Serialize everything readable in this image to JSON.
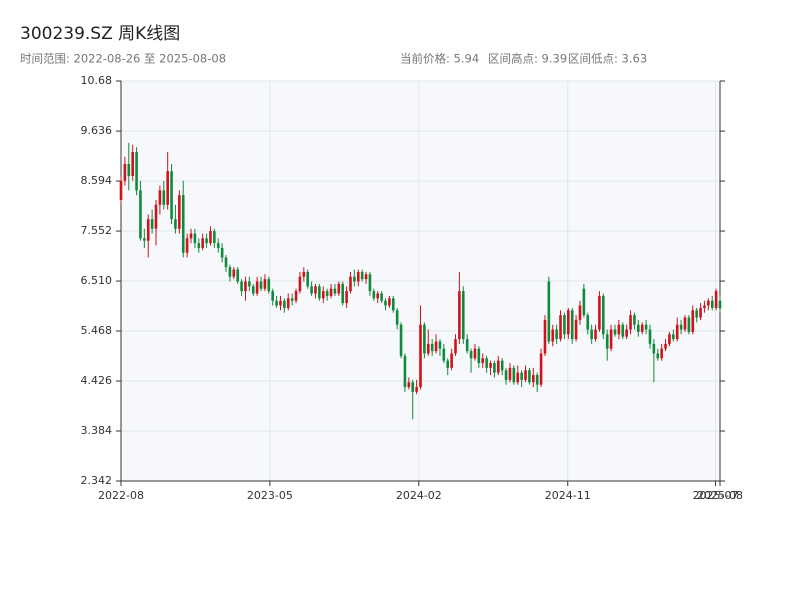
{
  "chart_data": {
    "type": "candlestick",
    "title": "300239.SZ 周K线图",
    "subtitle": "时间范围: 2022-08-26 至 2025-08-08",
    "stats": [
      "当前价格: 5.94",
      "区间高点: 9.39",
      "区间低点: 3.63"
    ],
    "up_color": "#d0121b",
    "down_color": "#0f8a3c",
    "x": [
      "2022-08-26",
      "2022-09-02",
      "2022-09-09",
      "2022-09-16",
      "2022-09-23",
      "2022-09-30",
      "2022-10-07",
      "2022-10-14",
      "2022-10-21",
      "2022-10-28",
      "2022-11-04",
      "2022-11-11",
      "2022-11-18",
      "2022-11-25",
      "2022-12-02",
      "2022-12-09",
      "2022-12-16",
      "2022-12-23",
      "2022-12-30",
      "2023-01-06",
      "2023-01-13",
      "2023-01-20",
      "2023-01-27",
      "2023-02-03",
      "2023-02-10",
      "2023-02-17",
      "2023-02-24",
      "2023-03-03",
      "2023-03-10",
      "2023-03-17",
      "2023-03-24",
      "2023-03-31",
      "2023-04-07",
      "2023-04-14",
      "2023-04-21",
      "2023-04-28",
      "2023-05-05",
      "2023-05-12",
      "2023-05-19",
      "2023-05-26",
      "2023-06-02",
      "2023-06-09",
      "2023-06-16",
      "2023-06-23",
      "2023-06-30",
      "2023-07-07",
      "2023-07-14",
      "2023-07-21",
      "2023-07-28",
      "2023-08-04",
      "2023-08-11",
      "2023-08-18",
      "2023-08-25",
      "2023-09-01",
      "2023-09-08",
      "2023-09-15",
      "2023-09-22",
      "2023-09-29",
      "2023-10-06",
      "2023-10-13",
      "2023-10-20",
      "2023-10-27",
      "2023-11-03",
      "2023-11-10",
      "2023-11-17",
      "2023-11-24",
      "2023-12-01",
      "2023-12-08",
      "2023-12-15",
      "2023-12-22",
      "2023-12-29",
      "2024-01-05",
      "2024-01-12",
      "2024-01-19",
      "2024-01-26",
      "2024-02-02",
      "2024-02-09",
      "2024-02-16",
      "2024-02-23",
      "2024-03-01",
      "2024-03-08",
      "2024-03-15",
      "2024-03-22",
      "2024-03-29",
      "2024-04-05",
      "2024-04-12",
      "2024-04-19",
      "2024-04-26",
      "2024-05-03",
      "2024-05-10",
      "2024-05-17",
      "2024-05-24",
      "2024-05-31",
      "2024-06-07",
      "2024-06-14",
      "2024-06-21",
      "2024-06-28",
      "2024-07-05",
      "2024-07-12",
      "2024-07-19",
      "2024-07-26",
      "2024-08-02",
      "2024-08-09",
      "2024-08-16",
      "2024-08-23",
      "2024-08-30",
      "2024-09-06",
      "2024-09-13",
      "2024-09-20",
      "2024-09-27",
      "2024-10-04",
      "2024-10-11",
      "2024-10-18",
      "2024-10-25",
      "2024-11-01",
      "2024-11-08",
      "2024-11-15",
      "2024-11-22",
      "2024-11-29",
      "2024-12-06",
      "2024-12-13",
      "2024-12-20",
      "2024-12-27",
      "2025-01-03",
      "2025-01-10",
      "2025-01-17",
      "2025-01-24",
      "2025-01-31",
      "2025-02-07",
      "2025-02-14",
      "2025-02-21",
      "2025-02-28",
      "2025-03-07",
      "2025-03-14",
      "2025-03-21",
      "2025-03-28",
      "2025-04-04",
      "2025-04-11",
      "2025-04-18",
      "2025-04-25",
      "2025-05-02",
      "2025-05-09",
      "2025-05-16",
      "2025-05-23",
      "2025-05-30",
      "2025-06-06",
      "2025-06-13",
      "2025-06-20",
      "2025-06-27",
      "2025-07-04",
      "2025-07-11",
      "2025-07-18",
      "2025-07-25",
      "2025-08-01",
      "2025-08-08"
    ],
    "open": [
      8.2,
      8.6,
      8.95,
      8.7,
      9.2,
      8.4,
      7.4,
      7.35,
      7.8,
      7.6,
      8.1,
      8.4,
      8.1,
      8.8,
      7.8,
      7.6,
      8.3,
      7.1,
      7.4,
      7.5,
      7.3,
      7.2,
      7.4,
      7.3,
      7.55,
      7.3,
      7.2,
      7.0,
      6.8,
      6.6,
      6.75,
      6.5,
      6.3,
      6.5,
      6.4,
      6.25,
      6.5,
      6.35,
      6.55,
      6.3,
      6.1,
      6.0,
      6.1,
      5.95,
      6.15,
      6.1,
      6.3,
      6.6,
      6.7,
      6.4,
      6.25,
      6.4,
      6.15,
      6.3,
      6.2,
      6.35,
      6.25,
      6.45,
      6.05,
      6.3,
      6.6,
      6.5,
      6.7,
      6.55,
      6.65,
      6.3,
      6.15,
      6.25,
      6.1,
      6.0,
      6.15,
      5.9,
      5.6,
      4.95,
      4.3,
      4.4,
      4.2,
      4.3,
      5.6,
      5.0,
      5.2,
      5.05,
      5.25,
      5.1,
      4.85,
      4.7,
      5.0,
      5.3,
      6.3,
      5.3,
      5.05,
      4.9,
      5.1,
      4.8,
      4.9,
      4.7,
      4.8,
      4.6,
      4.85,
      4.65,
      4.45,
      4.7,
      4.4,
      4.6,
      4.45,
      4.65,
      4.4,
      4.55,
      4.35,
      5.0,
      6.5,
      5.25,
      5.5,
      5.3,
      5.8,
      5.4,
      5.9,
      5.3,
      5.7,
      6.35,
      5.8,
      5.5,
      5.3,
      5.5,
      6.2,
      5.4,
      5.1,
      5.5,
      5.4,
      5.6,
      5.35,
      5.5,
      5.8,
      5.6,
      5.45,
      5.6,
      5.5,
      5.2,
      5.0,
      4.9,
      5.1,
      5.2,
      5.4,
      5.3,
      5.6,
      5.5,
      5.75,
      5.45,
      5.9,
      5.75,
      5.95,
      6.0,
      6.1,
      5.95,
      6.1
    ],
    "high": [
      8.7,
      9.1,
      9.39,
      9.35,
      9.3,
      8.6,
      7.6,
      7.9,
      8.0,
      8.2,
      8.5,
      8.6,
      9.2,
      8.95,
      8.1,
      8.4,
      8.6,
      7.5,
      7.6,
      7.6,
      7.4,
      7.5,
      7.5,
      7.65,
      7.6,
      7.4,
      7.3,
      7.05,
      6.85,
      6.8,
      6.8,
      6.55,
      6.6,
      6.6,
      6.45,
      6.6,
      6.6,
      6.65,
      6.6,
      6.35,
      6.2,
      6.2,
      6.15,
      6.25,
      6.25,
      6.35,
      6.7,
      6.8,
      6.75,
      6.5,
      6.45,
      6.45,
      6.4,
      6.35,
      6.45,
      6.45,
      6.5,
      6.5,
      6.4,
      6.7,
      6.75,
      6.75,
      6.75,
      6.7,
      6.7,
      6.35,
      6.3,
      6.3,
      6.15,
      6.2,
      6.2,
      5.95,
      5.65,
      5.0,
      4.5,
      4.45,
      4.45,
      6.0,
      5.65,
      5.5,
      5.3,
      5.4,
      5.3,
      5.2,
      4.9,
      5.1,
      5.4,
      6.7,
      6.4,
      5.4,
      5.1,
      5.2,
      5.15,
      5.0,
      4.95,
      4.85,
      4.85,
      4.95,
      4.9,
      4.7,
      4.8,
      4.75,
      4.75,
      4.65,
      4.75,
      4.7,
      4.7,
      4.6,
      5.1,
      5.8,
      6.6,
      5.6,
      5.6,
      5.9,
      5.85,
      5.95,
      5.95,
      5.8,
      6.1,
      6.45,
      5.85,
      5.6,
      5.6,
      6.3,
      6.25,
      5.5,
      5.6,
      5.6,
      5.7,
      5.65,
      5.6,
      5.9,
      5.85,
      5.7,
      5.65,
      5.7,
      5.6,
      5.3,
      5.1,
      5.2,
      5.3,
      5.45,
      5.5,
      5.75,
      5.7,
      5.8,
      5.8,
      6.0,
      5.95,
      6.05,
      6.1,
      6.15,
      6.2,
      6.35,
      6.2
    ],
    "low": [
      8.1,
      8.5,
      8.4,
      8.6,
      8.3,
      7.35,
      7.2,
      7.0,
      7.5,
      7.25,
      7.9,
      8.0,
      8.0,
      7.7,
      7.5,
      7.5,
      7.0,
      7.0,
      7.3,
      7.2,
      7.1,
      7.15,
      7.2,
      7.25,
      7.2,
      7.1,
      6.9,
      6.7,
      6.5,
      6.55,
      6.45,
      6.2,
      6.1,
      6.3,
      6.2,
      6.2,
      6.3,
      6.3,
      6.25,
      6.0,
      5.95,
      5.9,
      5.85,
      5.9,
      6.0,
      6.05,
      6.25,
      6.5,
      6.35,
      6.2,
      6.15,
      6.1,
      6.05,
      6.1,
      6.15,
      6.2,
      6.2,
      6.0,
      5.95,
      6.25,
      6.4,
      6.4,
      6.5,
      6.45,
      6.2,
      6.1,
      6.05,
      6.05,
      5.9,
      5.95,
      5.85,
      5.5,
      4.9,
      4.2,
      4.25,
      3.63,
      4.15,
      4.25,
      4.9,
      4.95,
      4.95,
      5.0,
      4.95,
      4.8,
      4.55,
      4.65,
      4.95,
      5.2,
      5.2,
      5.0,
      4.6,
      4.85,
      4.7,
      4.7,
      4.6,
      4.55,
      4.5,
      4.55,
      4.55,
      4.35,
      4.4,
      4.35,
      4.35,
      4.3,
      4.4,
      4.35,
      4.3,
      4.2,
      4.3,
      4.95,
      5.2,
      5.15,
      5.2,
      5.25,
      5.3,
      5.3,
      5.2,
      5.25,
      5.6,
      5.75,
      5.4,
      5.2,
      5.25,
      5.45,
      5.3,
      4.85,
      5.05,
      5.35,
      5.3,
      5.3,
      5.3,
      5.4,
      5.5,
      5.35,
      5.4,
      5.4,
      5.1,
      4.4,
      4.85,
      4.85,
      5.05,
      5.15,
      5.25,
      5.25,
      5.4,
      5.45,
      5.4,
      5.4,
      5.65,
      5.7,
      5.85,
      5.9,
      5.9,
      5.9,
      5.85
    ],
    "close": [
      8.6,
      8.95,
      8.7,
      9.2,
      8.4,
      7.4,
      7.35,
      7.8,
      7.6,
      8.1,
      8.4,
      8.1,
      8.8,
      7.8,
      7.6,
      8.3,
      7.1,
      7.4,
      7.5,
      7.3,
      7.2,
      7.4,
      7.3,
      7.55,
      7.3,
      7.2,
      7.0,
      6.8,
      6.6,
      6.75,
      6.5,
      6.3,
      6.5,
      6.4,
      6.25,
      6.5,
      6.35,
      6.55,
      6.3,
      6.1,
      6.0,
      6.1,
      5.95,
      6.15,
      6.1,
      6.3,
      6.6,
      6.7,
      6.4,
      6.25,
      6.4,
      6.15,
      6.3,
      6.2,
      6.35,
      6.25,
      6.45,
      6.05,
      6.3,
      6.6,
      6.5,
      6.7,
      6.55,
      6.65,
      6.3,
      6.15,
      6.25,
      6.1,
      6.0,
      6.15,
      5.9,
      5.6,
      4.95,
      4.3,
      4.4,
      4.2,
      4.3,
      5.6,
      5.0,
      5.2,
      5.05,
      5.25,
      5.1,
      4.85,
      4.7,
      5.0,
      5.3,
      6.3,
      5.3,
      5.05,
      4.9,
      5.1,
      4.8,
      4.9,
      4.7,
      4.8,
      4.6,
      4.85,
      4.65,
      4.45,
      4.7,
      4.4,
      4.6,
      4.45,
      4.65,
      4.4,
      4.55,
      4.35,
      5.0,
      5.7,
      5.25,
      5.5,
      5.3,
      5.8,
      5.4,
      5.9,
      5.3,
      5.7,
      6.0,
      5.8,
      5.5,
      5.3,
      5.5,
      6.2,
      5.4,
      5.1,
      5.5,
      5.4,
      5.6,
      5.35,
      5.5,
      5.8,
      5.6,
      5.45,
      5.6,
      5.5,
      5.2,
      5.0,
      4.9,
      5.1,
      5.2,
      5.4,
      5.3,
      5.6,
      5.5,
      5.75,
      5.45,
      5.9,
      5.75,
      5.95,
      6.0,
      6.1,
      5.95,
      6.3,
      5.94
    ],
    "xlim": [
      "2022-08-26",
      "2025-08-08"
    ],
    "xticks": [
      {
        "value": "2022-08-26",
        "label": "2022-08"
      },
      {
        "value": "2023-05-21",
        "label": "2023-05"
      },
      {
        "value": "2024-02-13",
        "label": "2024-02"
      },
      {
        "value": "2024-11-07",
        "label": "2024-11"
      },
      {
        "value": "2025-07-31",
        "label": "2025-07"
      },
      {
        "value": "2025-08-08",
        "label": "2025-08"
      }
    ],
    "ylim": [
      2.342,
      10.68
    ],
    "yticks": [
      2.342,
      3.384,
      4.426,
      5.468,
      {
        "value": 6.51,
        "label": "6.510"
      },
      7.552,
      8.594,
      9.636,
      10.68
    ],
    "grid": true
  }
}
